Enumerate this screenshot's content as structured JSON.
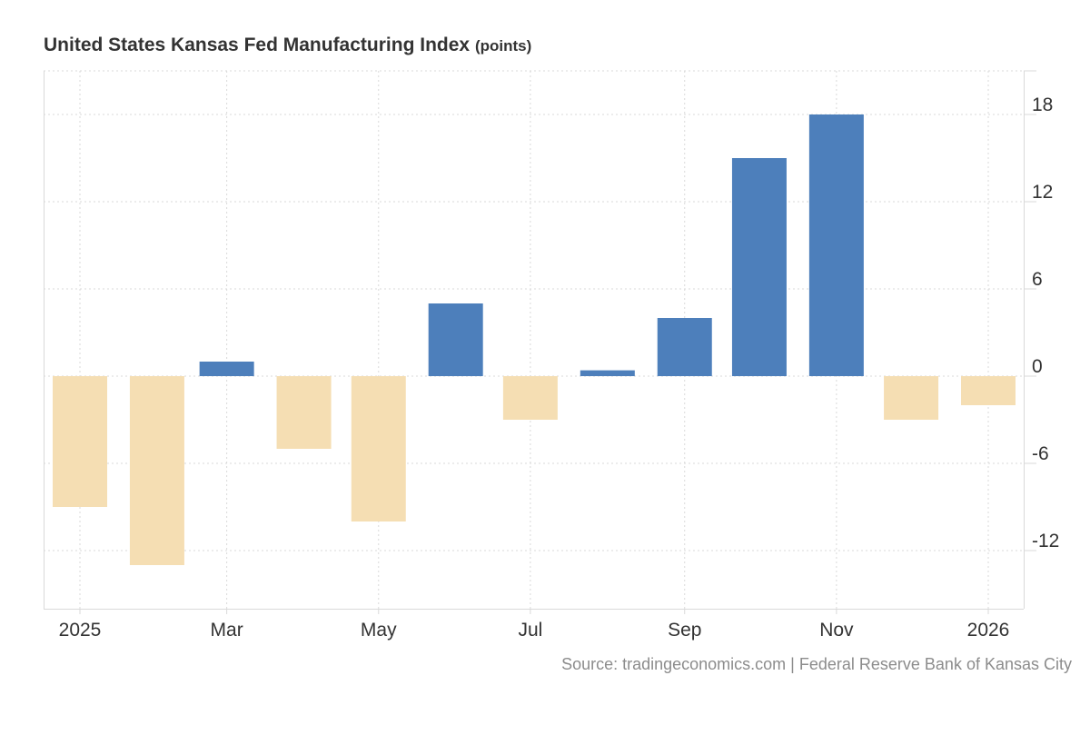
{
  "title": "United States Kansas Fed Manufacturing Index",
  "units": "(points)",
  "source": "Source: tradingeconomics.com | Federal Reserve Bank of Kansas City",
  "colors": {
    "positive": "#4d7fbb",
    "negative": "#f5deb3",
    "grid": "#d9d9d9",
    "text": "#333333",
    "source": "#8c8c8c"
  },
  "chart_data": {
    "type": "bar",
    "title": "United States Kansas Fed Manufacturing Index",
    "ylabel": "points",
    "xlabel": "",
    "categories": [
      "Jan 2025",
      "Feb 2025",
      "Mar 2025",
      "Apr 2025",
      "May 2025",
      "Jun 2025",
      "Jul 2025",
      "Aug 2025",
      "Sep 2025",
      "Oct 2025",
      "Nov 2025",
      "Dec 2025",
      "Jan 2026"
    ],
    "values": [
      -9,
      -13,
      1,
      -5,
      -10,
      5,
      -3,
      0.4,
      4,
      15,
      18,
      -3,
      -2
    ],
    "ylim": [
      -16,
      21
    ],
    "yticks": [
      -12,
      -6,
      0,
      6,
      12,
      18
    ],
    "x_tick_labels": [
      {
        "index": 0,
        "label": "2025"
      },
      {
        "index": 2,
        "label": "Mar"
      },
      {
        "index": 4,
        "label": "May"
      },
      {
        "index": 6,
        "label": "Jul"
      },
      {
        "index": 8,
        "label": "Sep"
      },
      {
        "index": 10,
        "label": "Nov"
      },
      {
        "index": 12,
        "label": "2026"
      }
    ],
    "grid": true,
    "y_axis_side": "right"
  }
}
